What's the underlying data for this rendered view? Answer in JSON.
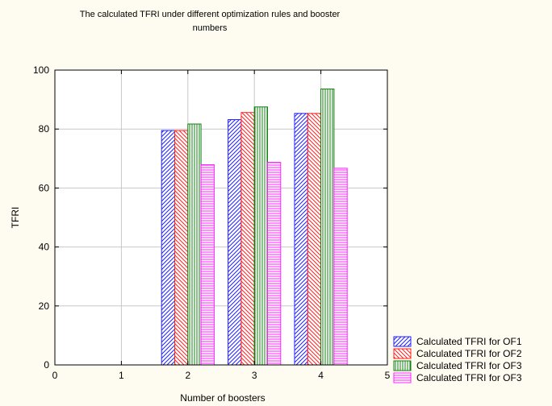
{
  "chart_data": {
    "type": "bar",
    "title_lines": [
      "The calculated TFRI under different optimization rules and booster",
      "numbers"
    ],
    "xlabel": "Number of boosters",
    "ylabel": "TFRI",
    "xlim": [
      0,
      5
    ],
    "ylim": [
      0,
      100
    ],
    "x_ticks": [
      0,
      1,
      2,
      3,
      4,
      5
    ],
    "y_ticks": [
      0,
      20,
      40,
      60,
      80,
      100
    ],
    "grid": true,
    "legend_position": "bottom-right",
    "categories": [
      2,
      3,
      4
    ],
    "series": [
      {
        "name": "Calculated TFRI for OF1",
        "color": "#2020ff",
        "pattern": "diagonal-up",
        "values": [
          79.5,
          83.2,
          85.3
        ]
      },
      {
        "name": "Calculated TFRI for OF2",
        "color": "#ff2020",
        "pattern": "diagonal-down",
        "values": [
          79.5,
          85.6,
          85.3
        ]
      },
      {
        "name": "Calculated TFRI for OF3",
        "color": "#108010",
        "pattern": "vertical",
        "values": [
          81.7,
          87.5,
          93.6
        ]
      },
      {
        "name": "Calculated TFRI for OF3",
        "color": "#ff20ff",
        "pattern": "horizontal",
        "values": [
          67.9,
          68.7,
          66.7
        ]
      }
    ]
  }
}
